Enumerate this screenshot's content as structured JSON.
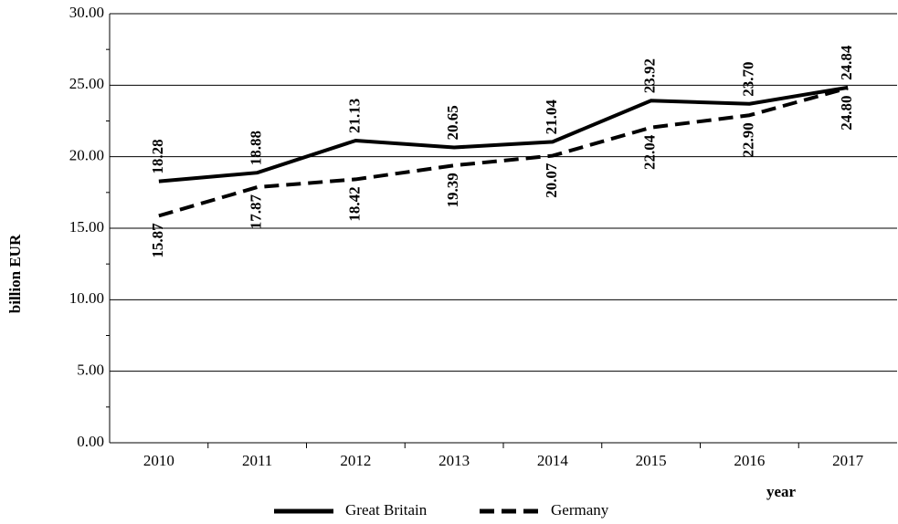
{
  "chart_data": {
    "type": "line",
    "x_label": "year",
    "y_label": "billion EUR",
    "categories": [
      "2010",
      "2011",
      "2012",
      "2013",
      "2014",
      "2015",
      "2016",
      "2017"
    ],
    "series": [
      {
        "name": "Great Britain",
        "color": "#000000",
        "dash": "solid",
        "values": [
          18.28,
          18.88,
          21.13,
          20.65,
          21.04,
          23.92,
          23.7,
          24.84
        ],
        "value_labels": [
          "18.28",
          "18.88",
          "21.13",
          "20.65",
          "21.04",
          "23.92",
          "23.70",
          "24.84"
        ]
      },
      {
        "name": "Germany",
        "color": "#000000",
        "dash": "dashed",
        "values": [
          15.87,
          17.87,
          18.42,
          19.39,
          20.07,
          22.04,
          22.9,
          24.8
        ],
        "value_labels": [
          "15.87",
          "17.87",
          "18.42",
          "19.39",
          "20.07",
          "22.04",
          "22.90",
          "24.80"
        ]
      }
    ],
    "ylim": [
      0,
      30
    ],
    "yticks": [
      {
        "value": 0,
        "label": "0.00"
      },
      {
        "value": 5,
        "label": "5.00"
      },
      {
        "value": 10,
        "label": "10.00"
      },
      {
        "value": 15,
        "label": "15.00"
      },
      {
        "value": 20,
        "label": "20.00"
      },
      {
        "value": 25,
        "label": "25.00"
      },
      {
        "value": 30,
        "label": "30.00"
      }
    ],
    "grid": true,
    "legend": "bottom"
  }
}
